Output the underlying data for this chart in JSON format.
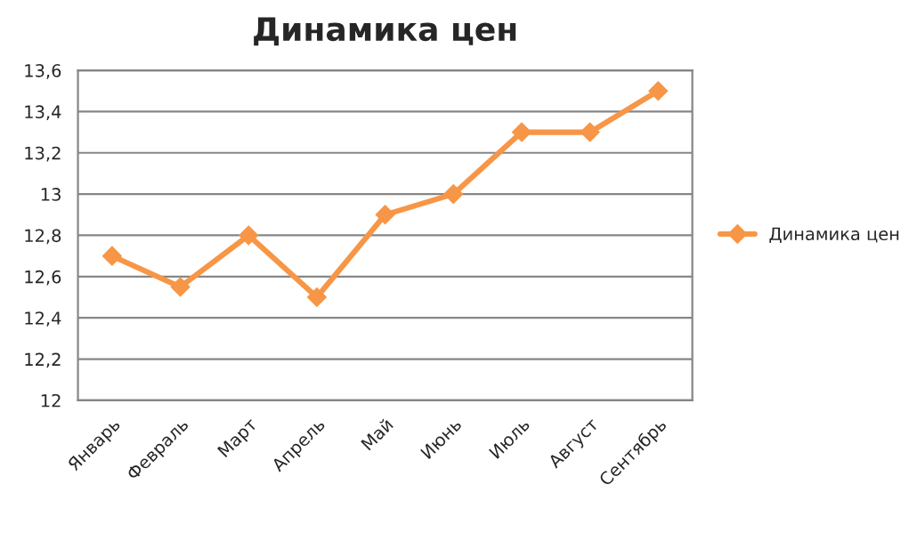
{
  "chart_data": {
    "type": "line",
    "title": "Динамика цен",
    "categories": [
      "Январь",
      "Февраль",
      "Март",
      "Апрель",
      "Май",
      "Июнь",
      "Июль",
      "Август",
      "Сентябрь"
    ],
    "series": [
      {
        "name": "Динамика цен",
        "color": "#f79646",
        "values": [
          12.7,
          12.55,
          12.8,
          12.5,
          12.9,
          13.0,
          13.3,
          13.3,
          13.5
        ]
      }
    ],
    "ylim": [
      12,
      13.6
    ],
    "yticks": [
      12,
      {
        "value": 12.2,
        "label": "12,2"
      },
      {
        "value": 12.4,
        "label": "12,4"
      },
      {
        "value": 12.6,
        "label": "12,6"
      },
      {
        "value": 12.8,
        "label": "12,8"
      },
      13,
      {
        "value": 13.2,
        "label": "13,2"
      },
      {
        "value": 13.4,
        "label": "13,4"
      },
      {
        "value": 13.6,
        "label": "13,6"
      }
    ],
    "grid": "y",
    "legend": "right",
    "marker": "diamond",
    "line_style": "solid"
  }
}
